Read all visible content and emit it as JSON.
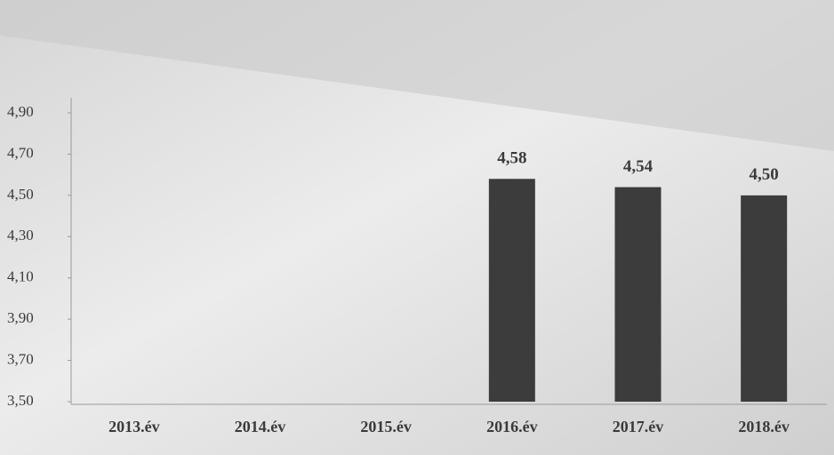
{
  "chart_data": {
    "type": "bar",
    "categories": [
      "2013.év",
      "2014.év",
      "2015.év",
      "2016.év",
      "2017.év",
      "2018.év"
    ],
    "values": [
      null,
      null,
      null,
      4.58,
      4.54,
      4.5
    ],
    "value_labels": [
      null,
      null,
      null,
      "4,58",
      "4,54",
      "4,50"
    ],
    "color": "#3c3c3c",
    "ylim": [
      3.5,
      4.9
    ],
    "yticks": [
      {
        "value": 3.5,
        "label": "3,50"
      },
      {
        "value": 3.7,
        "label": "3,70"
      },
      {
        "value": 3.9,
        "label": "3,90"
      },
      {
        "value": 4.1,
        "label": "4,10"
      },
      {
        "value": 4.3,
        "label": "4,30"
      },
      {
        "value": 4.5,
        "label": "4,50"
      },
      {
        "value": 4.7,
        "label": "4,70"
      },
      {
        "value": 4.9,
        "label": "4,90"
      }
    ],
    "grid": false
  }
}
